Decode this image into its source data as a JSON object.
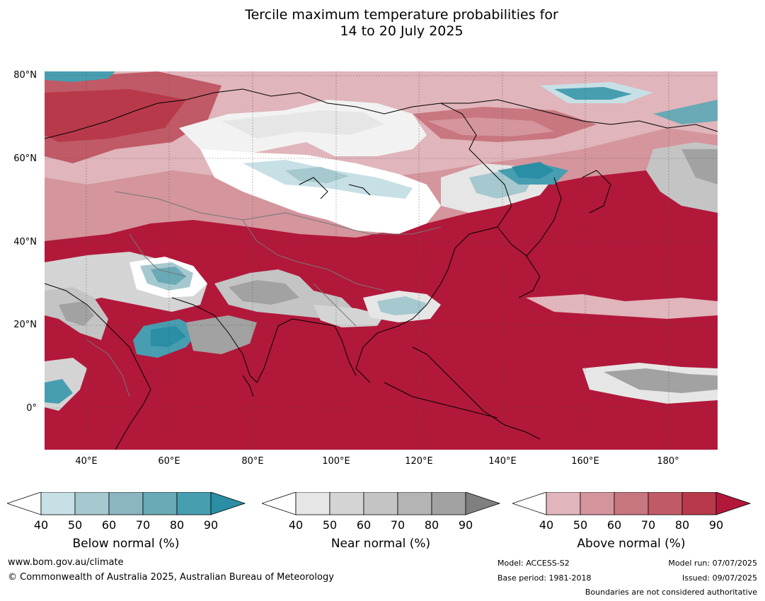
{
  "title_line1": "Tercile maximum temperature probabilities for",
  "title_line2": "14 to 20 July 2025",
  "lat_labels": [
    "80°N",
    "60°N",
    "40°N",
    "20°N",
    "0°"
  ],
  "lon_labels": [
    "40°E",
    "60°E",
    "80°E",
    "100°E",
    "120°E",
    "140°E",
    "160°E",
    "180°"
  ],
  "colorbars": [
    {
      "name": "below",
      "label": "Below normal (%)",
      "ticks": [
        "40",
        "50",
        "60",
        "70",
        "80",
        "90"
      ],
      "colors": [
        "#ffffff",
        "#c7e0e6",
        "#a6c8cf",
        "#8ab5c1",
        "#6aa9b6",
        "#479eb0",
        "#2a8ea5"
      ]
    },
    {
      "name": "near",
      "label": "Near normal (%)",
      "ticks": [
        "40",
        "50",
        "60",
        "70",
        "80",
        "90"
      ],
      "colors": [
        "#ffffff",
        "#e6e6e6",
        "#d4d4d4",
        "#c4c4c4",
        "#b4b4b4",
        "#a2a2a2",
        "#7f7f7f"
      ]
    },
    {
      "name": "above",
      "label": "Above normal (%)",
      "ticks": [
        "40",
        "50",
        "60",
        "70",
        "80",
        "90"
      ],
      "colors": [
        "#ffffff",
        "#e0b5bb",
        "#d4959d",
        "#c8767f",
        "#c05a66",
        "#b8394a",
        "#b2183a"
      ]
    }
  ],
  "footer": {
    "website": "www.bom.gov.au/climate",
    "copyright": "© Commonwealth of Australia 2025, Australian Bureau of Meteorology",
    "model": "Model: ACCESS-S2",
    "base_period": "Base period: 1981-2018",
    "model_run": "Model run: 07/07/2025",
    "issued": "Issued: 09/07/2025",
    "boundaries": "Boundaries are not considered authoritative"
  },
  "colors": {
    "ocean_above": "#b2183a",
    "below_strong": "#2a8ea5",
    "near_mid": "#c4c4c4"
  }
}
